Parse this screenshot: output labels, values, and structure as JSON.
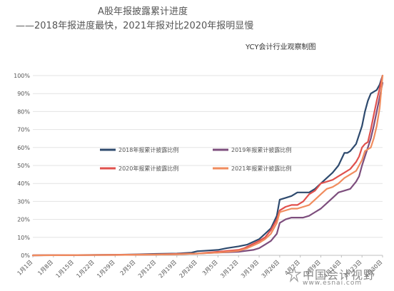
{
  "header": {
    "title": "A股年报披露累计进度",
    "subtitle": "——2018年报进度最快，2021年报对比2020年报明显慢",
    "source": "YCY会计行业观察制图"
  },
  "watermark": {
    "title": "中国会计视野",
    "url": "www.esnai.com"
  },
  "chart_data": {
    "type": "line",
    "title": "A股年报披露累计进度",
    "xlabel": "",
    "ylabel": "",
    "ylim": [
      0,
      100
    ],
    "yticks": [
      "0%",
      "10%",
      "20%",
      "30%",
      "40%",
      "50%",
      "60%",
      "70%",
      "80%",
      "90%",
      "100%"
    ],
    "xticks": [
      "1月1日",
      "1月8日",
      "1月15日",
      "1月22日",
      "1月29日",
      "2月5日",
      "2月12日",
      "2月19日",
      "2月26日",
      "3月5日",
      "3月12日",
      "3月19日",
      "3月26日",
      "4月2日",
      "4月9日",
      "4月16日",
      "4月23日",
      "4月30日"
    ],
    "x_tick_days": [
      0,
      7,
      14,
      21,
      28,
      35,
      42,
      49,
      56,
      63,
      70,
      77,
      84,
      91,
      98,
      105,
      112,
      119
    ],
    "x_range_days": [
      0,
      119
    ],
    "legend_position": "center",
    "grid": true,
    "series": [
      {
        "name": "2018年报累计披露比例",
        "color": "#2e4a6e",
        "days": [
          0,
          28,
          35,
          42,
          49,
          54,
          56,
          58,
          63,
          66,
          70,
          73,
          77,
          79,
          81,
          83,
          84,
          86,
          88,
          90,
          92,
          94,
          96,
          98,
          100,
          102,
          104,
          106,
          107,
          108,
          110,
          112,
          113,
          114,
          115,
          116,
          117,
          118,
          119
        ],
        "values": [
          0,
          0.3,
          0.5,
          0.8,
          1,
          1.5,
          2.3,
          2.5,
          3,
          4,
          5,
          6,
          9,
          12,
          15,
          22,
          31,
          32,
          33,
          35,
          35,
          35,
          37,
          40,
          43,
          46,
          50,
          57,
          57,
          58,
          62,
          72,
          80,
          86,
          90,
          91,
          92,
          95,
          100
        ]
      },
      {
        "name": "2019年报累计披露比例",
        "color": "#7d4e7d",
        "days": [
          0,
          28,
          42,
          49,
          56,
          63,
          70,
          75,
          77,
          79,
          81,
          83,
          84,
          86,
          88,
          90,
          92,
          94,
          96,
          98,
          100,
          102,
          104,
          106,
          108,
          110,
          111,
          112,
          113,
          114,
          115,
          116,
          117,
          118,
          119
        ],
        "values": [
          0,
          0.2,
          0.4,
          0.6,
          1,
          1.5,
          2,
          3,
          4,
          6,
          8,
          12,
          18,
          20,
          21,
          21,
          21,
          22,
          24,
          26,
          29,
          32,
          35,
          36,
          37,
          41,
          44,
          50,
          55,
          60,
          65,
          72,
          80,
          88,
          96
        ]
      },
      {
        "name": "2020年报累计披露比例",
        "color": "#e0514d",
        "days": [
          0,
          28,
          42,
          49,
          56,
          58,
          63,
          70,
          72,
          77,
          79,
          81,
          83,
          84,
          86,
          88,
          90,
          92,
          94,
          96,
          98,
          100,
          102,
          104,
          106,
          108,
          110,
          111,
          112,
          113,
          114,
          115,
          116,
          117,
          118,
          119
        ],
        "values": [
          0,
          0.3,
          0.5,
          0.8,
          1,
          1.3,
          2,
          3,
          4,
          8,
          10,
          14,
          20,
          25,
          27,
          28,
          28,
          30,
          34,
          36,
          40,
          41,
          42,
          44,
          46,
          48,
          52,
          55,
          60,
          62,
          63,
          70,
          78,
          86,
          93,
          100
        ]
      },
      {
        "name": "2021年报累计披露比例",
        "color": "#f08c5e",
        "days": [
          0,
          28,
          42,
          49,
          56,
          63,
          70,
          73,
          77,
          79,
          81,
          83,
          84,
          86,
          88,
          90,
          92,
          94,
          96,
          98,
          100,
          102,
          104,
          106,
          108,
          110,
          111,
          112,
          113,
          114,
          115,
          116,
          117,
          118,
          119
        ],
        "values": [
          0,
          0.2,
          0.4,
          0.6,
          1,
          1.5,
          2.5,
          4,
          7,
          9,
          12,
          18,
          24,
          25,
          26,
          26,
          27,
          28,
          31,
          34,
          37,
          38,
          40,
          43,
          45,
          47,
          50,
          53,
          58,
          59,
          60,
          65,
          72,
          82,
          100
        ]
      }
    ]
  }
}
